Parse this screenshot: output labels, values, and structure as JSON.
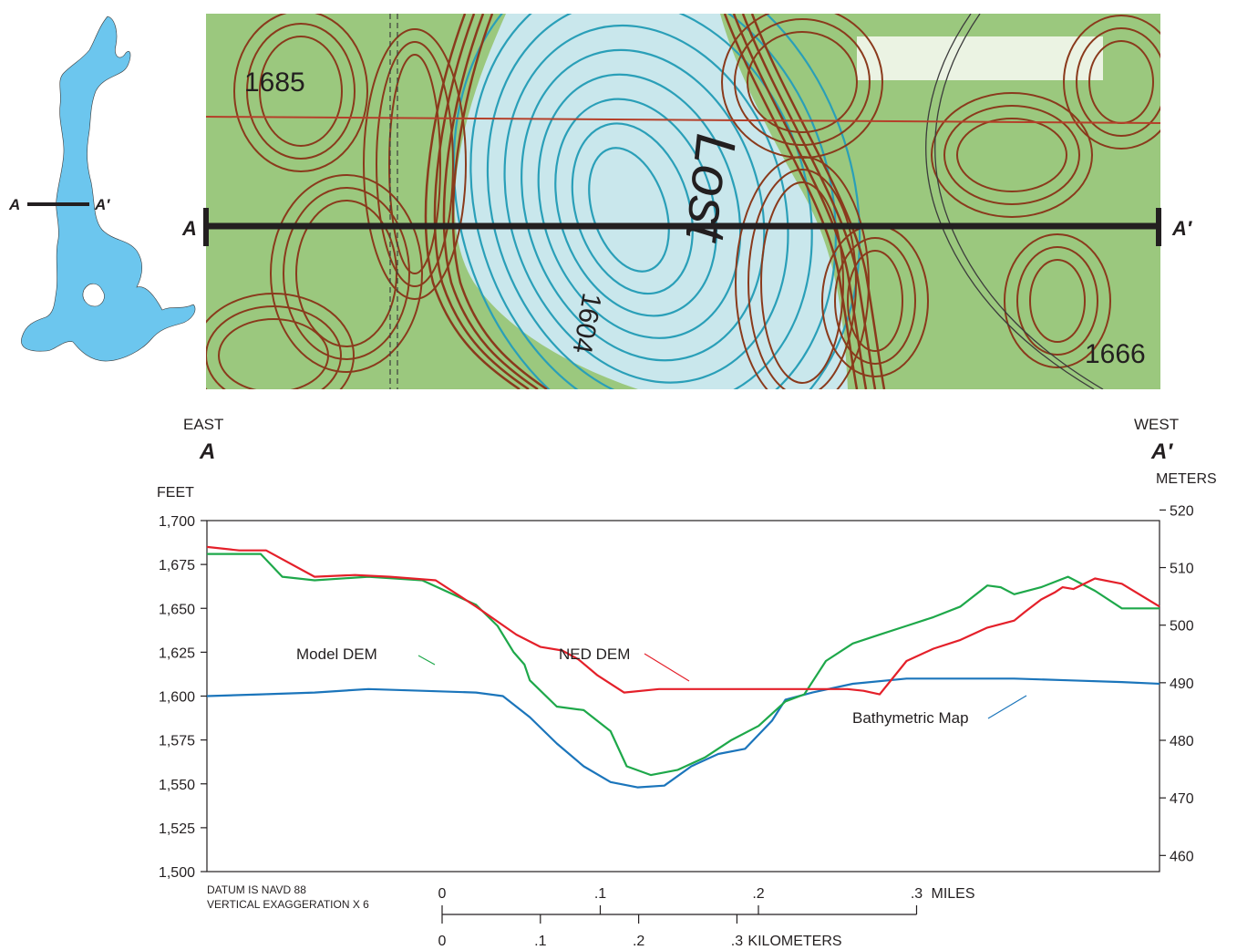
{
  "inset_map": {
    "label_a": "A",
    "label_a_prime": "A′",
    "lake_color": "#6cc6ee"
  },
  "topo_map": {
    "label_a": "A",
    "label_a_prime": "A′",
    "map_labels": [
      "1685",
      "1604",
      "Lost",
      "1666"
    ],
    "colors": {
      "land": "#9bc87e",
      "water": "#c9e7ec",
      "contour_land": "#8a3a1c",
      "contour_water": "#2a9fb8"
    }
  },
  "chart_data": {
    "type": "line",
    "left_end_direction": "EAST",
    "right_end_direction": "WEST",
    "left_end_label": "A",
    "right_end_label": "A′",
    "ylabel": "FEET",
    "ylabel_right": "METERS",
    "ylim": [
      1500,
      1700
    ],
    "yticks": [
      1500,
      1525,
      1550,
      1575,
      1600,
      1625,
      1650,
      1675,
      1700
    ],
    "ytick_labels": [
      "1,500",
      "1,525",
      "1,550",
      "1,575",
      "1,600",
      "1,625",
      "1,650",
      "1,675",
      "1,700"
    ],
    "yticks_right": [
      460,
      470,
      480,
      490,
      500,
      510,
      520
    ],
    "xlim_miles": [
      0,
      0.354
    ],
    "grid": false,
    "series": [
      {
        "name": "NED DEM",
        "color": "#e4202a",
        "label_position": "upper-middle",
        "x": [
          0,
          0.012,
          0.022,
          0.04,
          0.055,
          0.068,
          0.085,
          0.1,
          0.115,
          0.124,
          0.132,
          0.138,
          0.145,
          0.155,
          0.168,
          0.178,
          0.19,
          0.2,
          0.2115,
          0.215,
          0.22,
          0.224,
          0.228,
          0.232,
          0.238,
          0.244,
          0.25,
          0.26,
          0.27,
          0.28,
          0.29,
          0.3,
          0.304,
          0.31,
          0.315,
          0.318,
          0.322,
          0.33,
          0.34,
          0.354
        ],
        "y": [
          1685,
          1683,
          1683,
          1668,
          1669,
          1668,
          1666,
          1651,
          1635,
          1628,
          1626,
          1621,
          1612,
          1602,
          1604,
          1604,
          1604,
          1604,
          1604,
          1604,
          1604,
          1604,
          1604,
          1604,
          1604,
          1603,
          1601,
          1620,
          1627,
          1632,
          1639,
          1643,
          1648,
          1655,
          1659,
          1662,
          1661,
          1667,
          1664,
          1651
        ]
      },
      {
        "name": "Model DEM",
        "color": "#1ea84a",
        "label_position": "upper-left",
        "x": [
          0,
          0.02,
          0.028,
          0.04,
          0.06,
          0.08,
          0.1,
          0.108,
          0.114,
          0.118,
          0.12,
          0.13,
          0.14,
          0.15,
          0.156,
          0.165,
          0.175,
          0.185,
          0.195,
          0.205,
          0.215,
          0.222,
          0.23,
          0.24,
          0.25,
          0.26,
          0.27,
          0.28,
          0.29,
          0.295,
          0.3,
          0.31,
          0.32,
          0.33,
          0.34,
          0.354
        ],
        "y": [
          1681,
          1681,
          1668,
          1666,
          1668,
          1666,
          1652,
          1640,
          1625,
          1618,
          1609,
          1594,
          1592,
          1580,
          1560,
          1555,
          1558,
          1565,
          1575,
          1583,
          1597,
          1601,
          1620,
          1630,
          1635,
          1640,
          1645,
          1651,
          1663,
          1662,
          1658,
          1662,
          1668,
          1660,
          1650,
          1650
        ]
      },
      {
        "name": "Bathymetric Map",
        "color": "#1b75bb",
        "label_position": "lower-right",
        "x": [
          0,
          0.02,
          0.04,
          0.06,
          0.08,
          0.1,
          0.11,
          0.12,
          0.13,
          0.14,
          0.15,
          0.16,
          0.17,
          0.18,
          0.19,
          0.2,
          0.21,
          0.215,
          0.225,
          0.24,
          0.26,
          0.28,
          0.3,
          0.32,
          0.34,
          0.354
        ],
        "y": [
          1600,
          1601,
          1602,
          1604,
          1603,
          1602,
          1600,
          1588,
          1573,
          1560,
          1551,
          1548,
          1549,
          1560,
          1567,
          1570,
          1586,
          1598,
          1602,
          1607,
          1610,
          1610,
          1610,
          1609,
          1608,
          1607
        ]
      }
    ],
    "notes": [
      "DATUM IS NAVD 88",
      "VERTICAL EXAGGERATION X 6"
    ],
    "scale_miles": {
      "ticks": [
        0,
        0.1,
        0.2,
        0.3
      ],
      "tick_labels": [
        "0",
        ".1",
        ".2",
        ".3"
      ],
      "unit": "MILES"
    },
    "scale_km": {
      "ticks": [
        0,
        0.1,
        0.2,
        0.3
      ],
      "tick_labels": [
        "0",
        ".1",
        ".2",
        ".3"
      ],
      "unit": "KILOMETERS"
    }
  }
}
